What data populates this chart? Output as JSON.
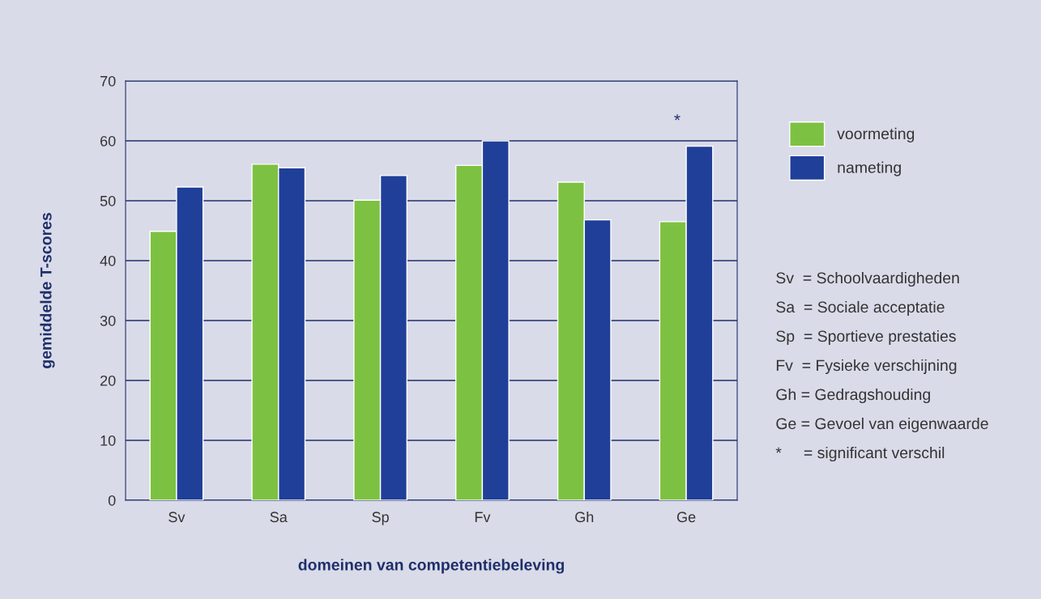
{
  "chart_data": {
    "type": "bar",
    "xlabel": "domeinen van competentiebeleving",
    "ylabel": "gemiddelde T-scores",
    "categories": [
      "Sv",
      "Sa",
      "Sp",
      "Fv",
      "Gh",
      "Ge"
    ],
    "series": [
      {
        "name": "voormeting",
        "color": "#7dc142",
        "values": [
          44.9,
          56.1,
          50.1,
          55.9,
          53.1,
          46.5
        ]
      },
      {
        "name": "nameting",
        "color": "#1f3f99",
        "values": [
          52.3,
          55.5,
          54.2,
          60.0,
          46.8,
          59.1
        ]
      }
    ],
    "ylim": [
      0,
      70
    ],
    "yticks": [
      0,
      10,
      20,
      30,
      40,
      50,
      60,
      70
    ],
    "grid": "y",
    "legend": "right",
    "annotations": [
      {
        "text": "*",
        "x": "Ge",
        "y": 59.1
      },
      "Sv  = Schoolvaardigheden",
      "Sa  = Sociale acceptatie",
      "Sp  = Sportieve prestaties",
      "Fv  = Fysieke verschijning",
      "Gh = Gedragshouding",
      "Ge = Gevoel van eigenwaarde",
      "*     = significant verschil"
    ]
  }
}
